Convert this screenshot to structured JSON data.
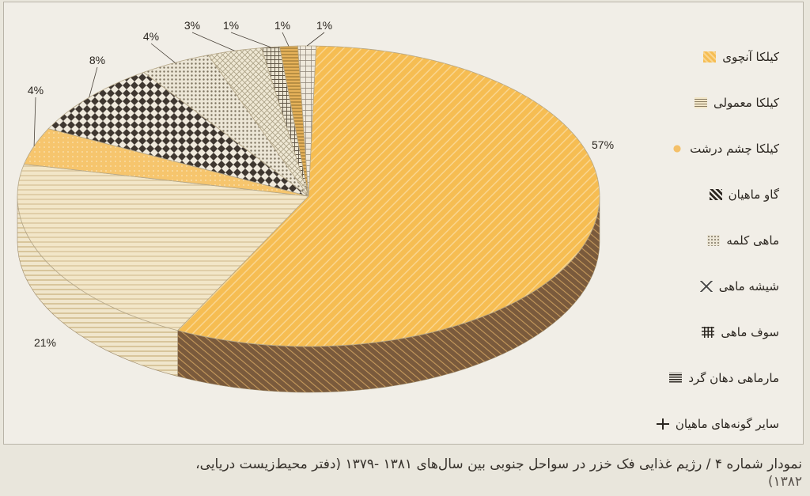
{
  "chart_data": {
    "type": "pie",
    "categories": [
      "کیلکا آنچوی",
      "کیلکا معمولی",
      "کیلکا چشم درشت",
      "گاو ماهیان",
      "ماهی کلمه",
      "شیشه ماهی",
      "سوف ماهی",
      "مارماهی دهان گرد",
      "سایر گونه‌های ماهیان"
    ],
    "values": [
      57,
      21,
      4,
      8,
      4,
      3,
      1,
      1,
      1
    ],
    "labels": [
      "57%",
      "21%",
      "4%",
      "8%",
      "4%",
      "3%",
      "1%",
      "1%",
      "1%"
    ],
    "legend_position": "right",
    "title": "نمودار شماره ۴ / رژیم غذایی فک خزر در سواحل جنوبی بین سال‌های ۱۳۸۱ -۱۳۷۹ (دفتر محیط‌زیست دریایی، ۱۳۸۲)"
  },
  "legend": {
    "items": [
      {
        "label": "کیلکا آنچوی",
        "color": "#f5b544"
      },
      {
        "label": "کیلکا معمولی",
        "color": "#eadcb8"
      },
      {
        "label": "کیلکا چشم درشت",
        "color": "#f4c069"
      },
      {
        "label": "گاو ماهیان",
        "color": "#403830"
      },
      {
        "label": "ماهی کلمه",
        "color": "#8c826e"
      },
      {
        "label": "شیشه ماهی",
        "color": "#c8bf9f"
      },
      {
        "label": "سوف ماهی",
        "color": "#6d6250"
      },
      {
        "label": "مارماهی دهان گرد",
        "color": "#b08a3c"
      },
      {
        "label": "سایر گونه‌های ماهیان",
        "color": "#9a9080"
      }
    ]
  },
  "caption": {
    "line1": "نمودار شماره ۴ / رژیم غذایی فک خزر در سواحل جنوبی بین سال‌های ۱۳۸۱ -۱۳۷۹ (دفتر محیط‌زیست دریایی،",
    "line2": "۱۳۸۲)"
  }
}
